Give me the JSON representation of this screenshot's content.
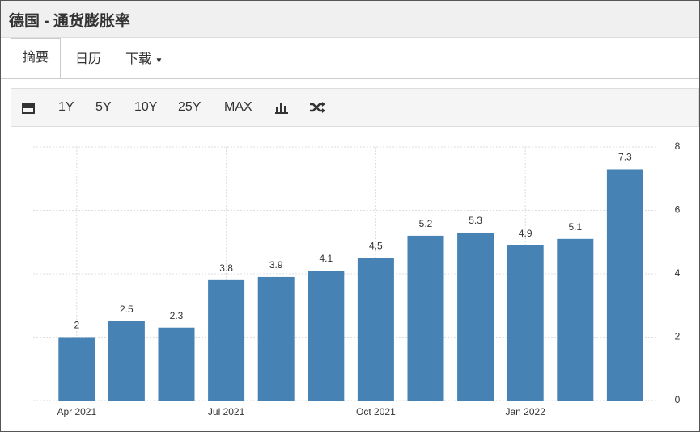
{
  "header": {
    "title": "德国 - 通货膨胀率"
  },
  "tabs": [
    "摘要",
    "日历",
    "下载"
  ],
  "toolbar": [
    "1Y",
    "5Y",
    "10Y",
    "25Y",
    "MAX"
  ],
  "chart_data": {
    "type": "bar",
    "categories": [
      "Apr 2021",
      null,
      null,
      "Jul 2021",
      null,
      null,
      "Oct 2021",
      null,
      null,
      "Jan 2022",
      null,
      null
    ],
    "values": [
      2,
      2.5,
      2.3,
      3.8,
      3.9,
      4.1,
      4.5,
      5.2,
      5.3,
      4.9,
      5.1,
      7.3
    ],
    "color": "#4682b4",
    "ylim": [
      0,
      8
    ],
    "yticks": [
      0,
      2,
      4,
      6,
      8
    ],
    "grid": true
  }
}
